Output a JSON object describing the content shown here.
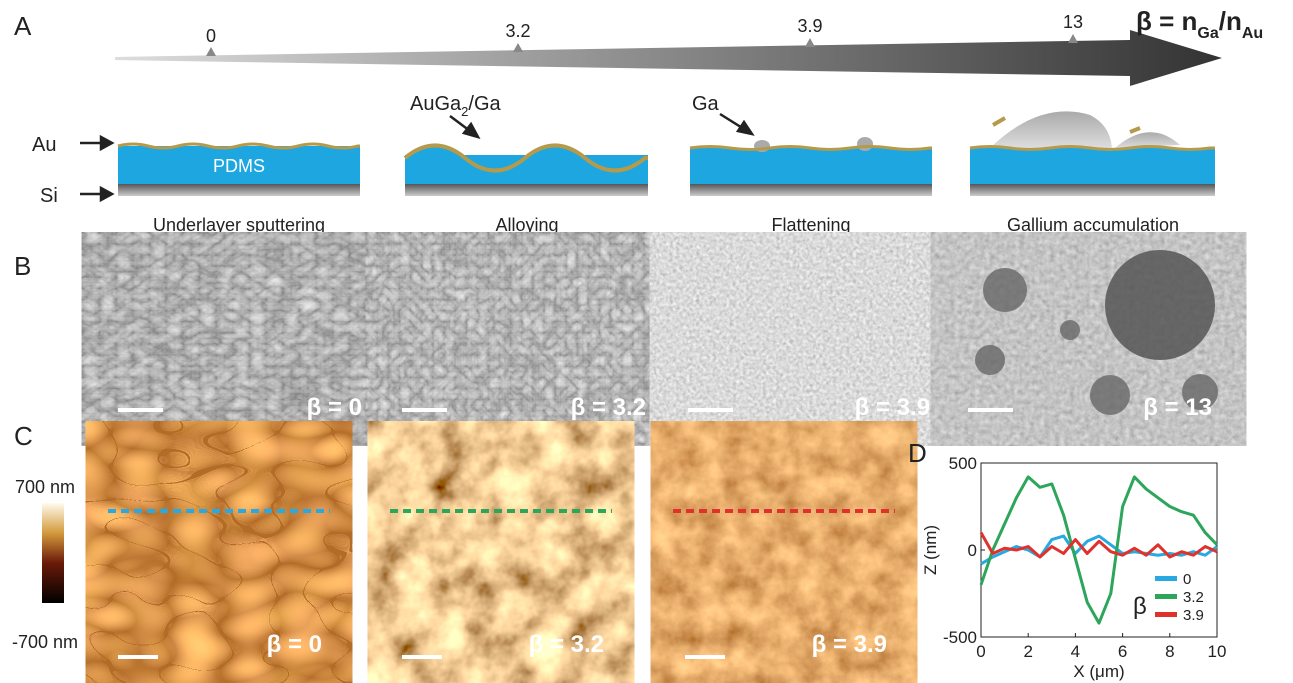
{
  "panel_labels": [
    "A",
    "B",
    "C",
    "D"
  ],
  "scale": {
    "ticks": [
      "0",
      "3.2",
      "3.9",
      "13"
    ],
    "title_parts": [
      "β = n",
      "Ga",
      "/n",
      "Au"
    ]
  },
  "schematic": {
    "layer_labels": [
      "Au",
      "Si"
    ],
    "material": "PDMS",
    "alloy_label": [
      "AuGa",
      "2",
      "/Ga"
    ],
    "ga_label": "Ga",
    "steps": [
      "Underlayer sputtering",
      "Alloying",
      "Flattening",
      "Gallium accumulation"
    ]
  },
  "sem": {
    "labels": [
      "β = 0",
      "β = 3.2",
      "β = 3.9",
      "β = 13"
    ]
  },
  "afm": {
    "labels": [
      "β = 0",
      "β = 3.2",
      "β = 3.9"
    ],
    "colorbar": [
      "700 nm",
      "-700 nm"
    ]
  },
  "chart_data": {
    "type": "line",
    "xlabel": "X (μm)",
    "ylabel": "Z (nm)",
    "legend_title": "β",
    "legend": "lower right",
    "x": [
      0,
      0.5,
      1,
      1.5,
      2,
      2.5,
      3,
      3.5,
      4,
      4.5,
      5,
      5.5,
      6,
      6.5,
      7,
      7.5,
      8,
      8.5,
      9,
      9.5,
      10
    ],
    "series": [
      {
        "name": "0",
        "color": "#29a9e1",
        "values": [
          -80,
          -40,
          -10,
          20,
          0,
          -40,
          60,
          80,
          -20,
          50,
          80,
          30,
          -20,
          -10,
          -20,
          -30,
          -20,
          -30,
          -10,
          -30,
          20
        ]
      },
      {
        "name": "3.2",
        "color": "#2da55a",
        "values": [
          -200,
          0,
          150,
          300,
          420,
          360,
          380,
          200,
          -50,
          -300,
          -420,
          -250,
          250,
          420,
          350,
          300,
          250,
          220,
          200,
          100,
          30
        ]
      },
      {
        "name": "3.9",
        "color": "#e0322d",
        "values": [
          100,
          -20,
          10,
          0,
          20,
          -40,
          20,
          -20,
          60,
          -20,
          50,
          -10,
          -30,
          10,
          -30,
          30,
          -40,
          -10,
          -30,
          20,
          -10
        ]
      }
    ],
    "xlim": [
      0,
      10
    ],
    "ylim": [
      -500,
      500
    ],
    "xticks": [
      0,
      2,
      4,
      6,
      8,
      10
    ],
    "yticks": [
      -500,
      0,
      500
    ]
  }
}
